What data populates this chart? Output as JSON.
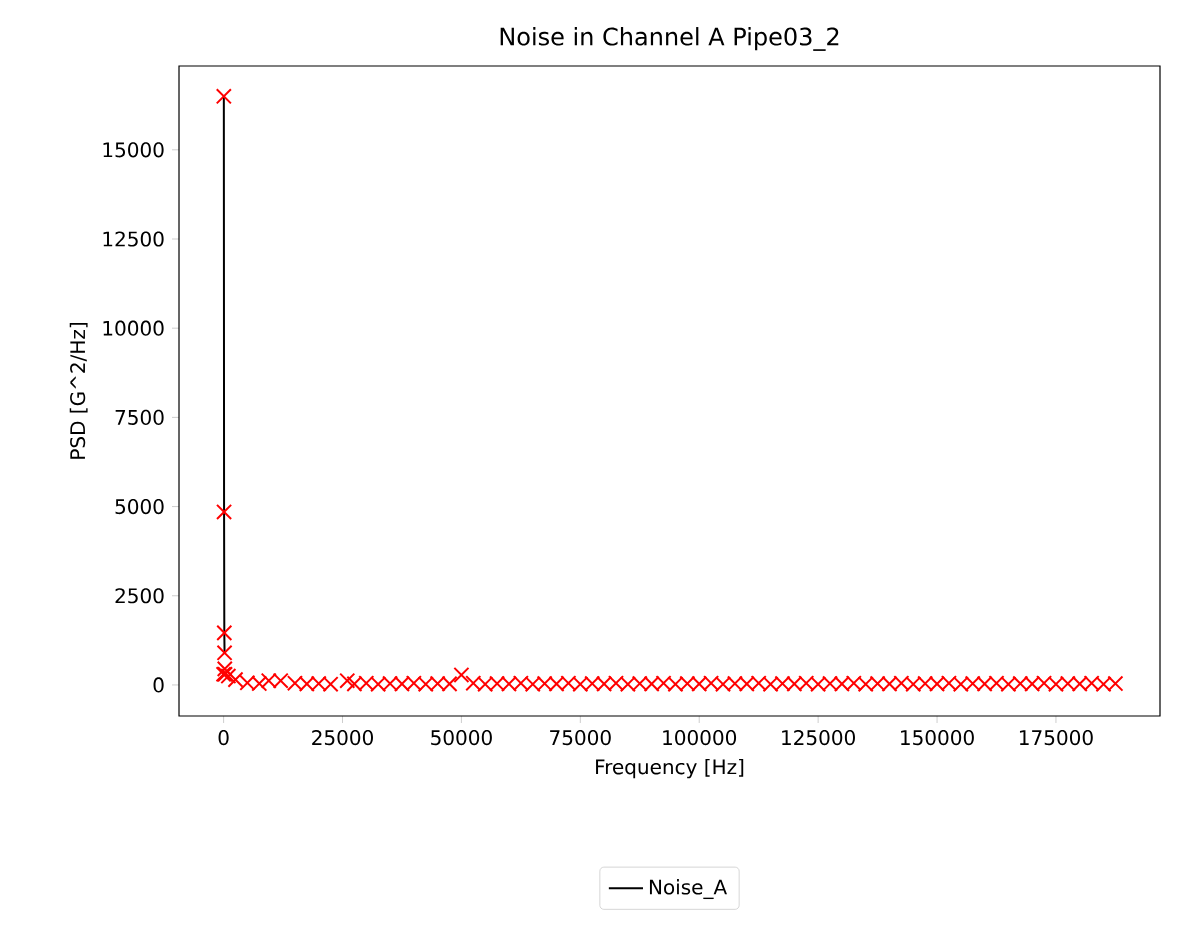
{
  "chart_data": {
    "type": "line",
    "title": "Noise in Channel A Pipe03_2",
    "xlabel": "Frequency [Hz]",
    "ylabel": "PSD [G^2/Hz]",
    "xlim": [
      -9375,
      196875
    ],
    "ylim": [
      -870,
      17350
    ],
    "xticks": [
      0,
      25000,
      50000,
      75000,
      100000,
      125000,
      150000,
      175000
    ],
    "yticks": [
      0,
      2500,
      5000,
      7500,
      10000,
      12500,
      15000
    ],
    "legend": "bottom",
    "series": [
      {
        "name": "Noise_A",
        "color": "#000000",
        "marker": "none",
        "x": [
          50,
          100,
          150,
          200
        ],
        "values": [
          16500,
          4850,
          1460,
          900
        ]
      },
      {
        "type": "scatter",
        "color": "#ff0000",
        "marker": "cross",
        "x": [
          0,
          50,
          100,
          150,
          200,
          250,
          300,
          1000,
          2500,
          5000,
          7500,
          9500,
          12000,
          15000,
          17500,
          20000,
          22500,
          26000,
          27500,
          30000,
          32500,
          35000,
          37500,
          40000,
          42500,
          45000,
          47500,
          50000,
          52500,
          55000,
          57500,
          60000,
          62500,
          65000,
          67500,
          70000,
          72500,
          75000,
          77500,
          80000,
          82500,
          85000,
          87500,
          90000,
          92500,
          95000,
          97500,
          100000,
          102500,
          105000,
          107500,
          110000,
          112500,
          115000,
          117500,
          120000,
          122500,
          125000,
          127500,
          130000,
          132500,
          135000,
          137500,
          140000,
          142500,
          145000,
          147500,
          150000,
          152500,
          155000,
          157500,
          160000,
          162500,
          165000,
          167500,
          170000,
          172500,
          175000,
          177500,
          180000,
          182500,
          185000,
          187500
        ],
        "values": [
          300,
          16500,
          4850,
          1460,
          900,
          450,
          300,
          250,
          150,
          60,
          40,
          120,
          120,
          50,
          30,
          40,
          20,
          120,
          30,
          50,
          20,
          40,
          30,
          50,
          20,
          40,
          30,
          280,
          50,
          20,
          40,
          30,
          50,
          20,
          40,
          30,
          50,
          20,
          40,
          30,
          50,
          20,
          40,
          30,
          50,
          20,
          40,
          30,
          50,
          20,
          40,
          30,
          50,
          20,
          40,
          30,
          50,
          20,
          40,
          30,
          50,
          20,
          40,
          30,
          50,
          20,
          40,
          30,
          50,
          20,
          40,
          30,
          50,
          20,
          40,
          30,
          50,
          20,
          40,
          30,
          50,
          20,
          40
        ]
      }
    ]
  }
}
